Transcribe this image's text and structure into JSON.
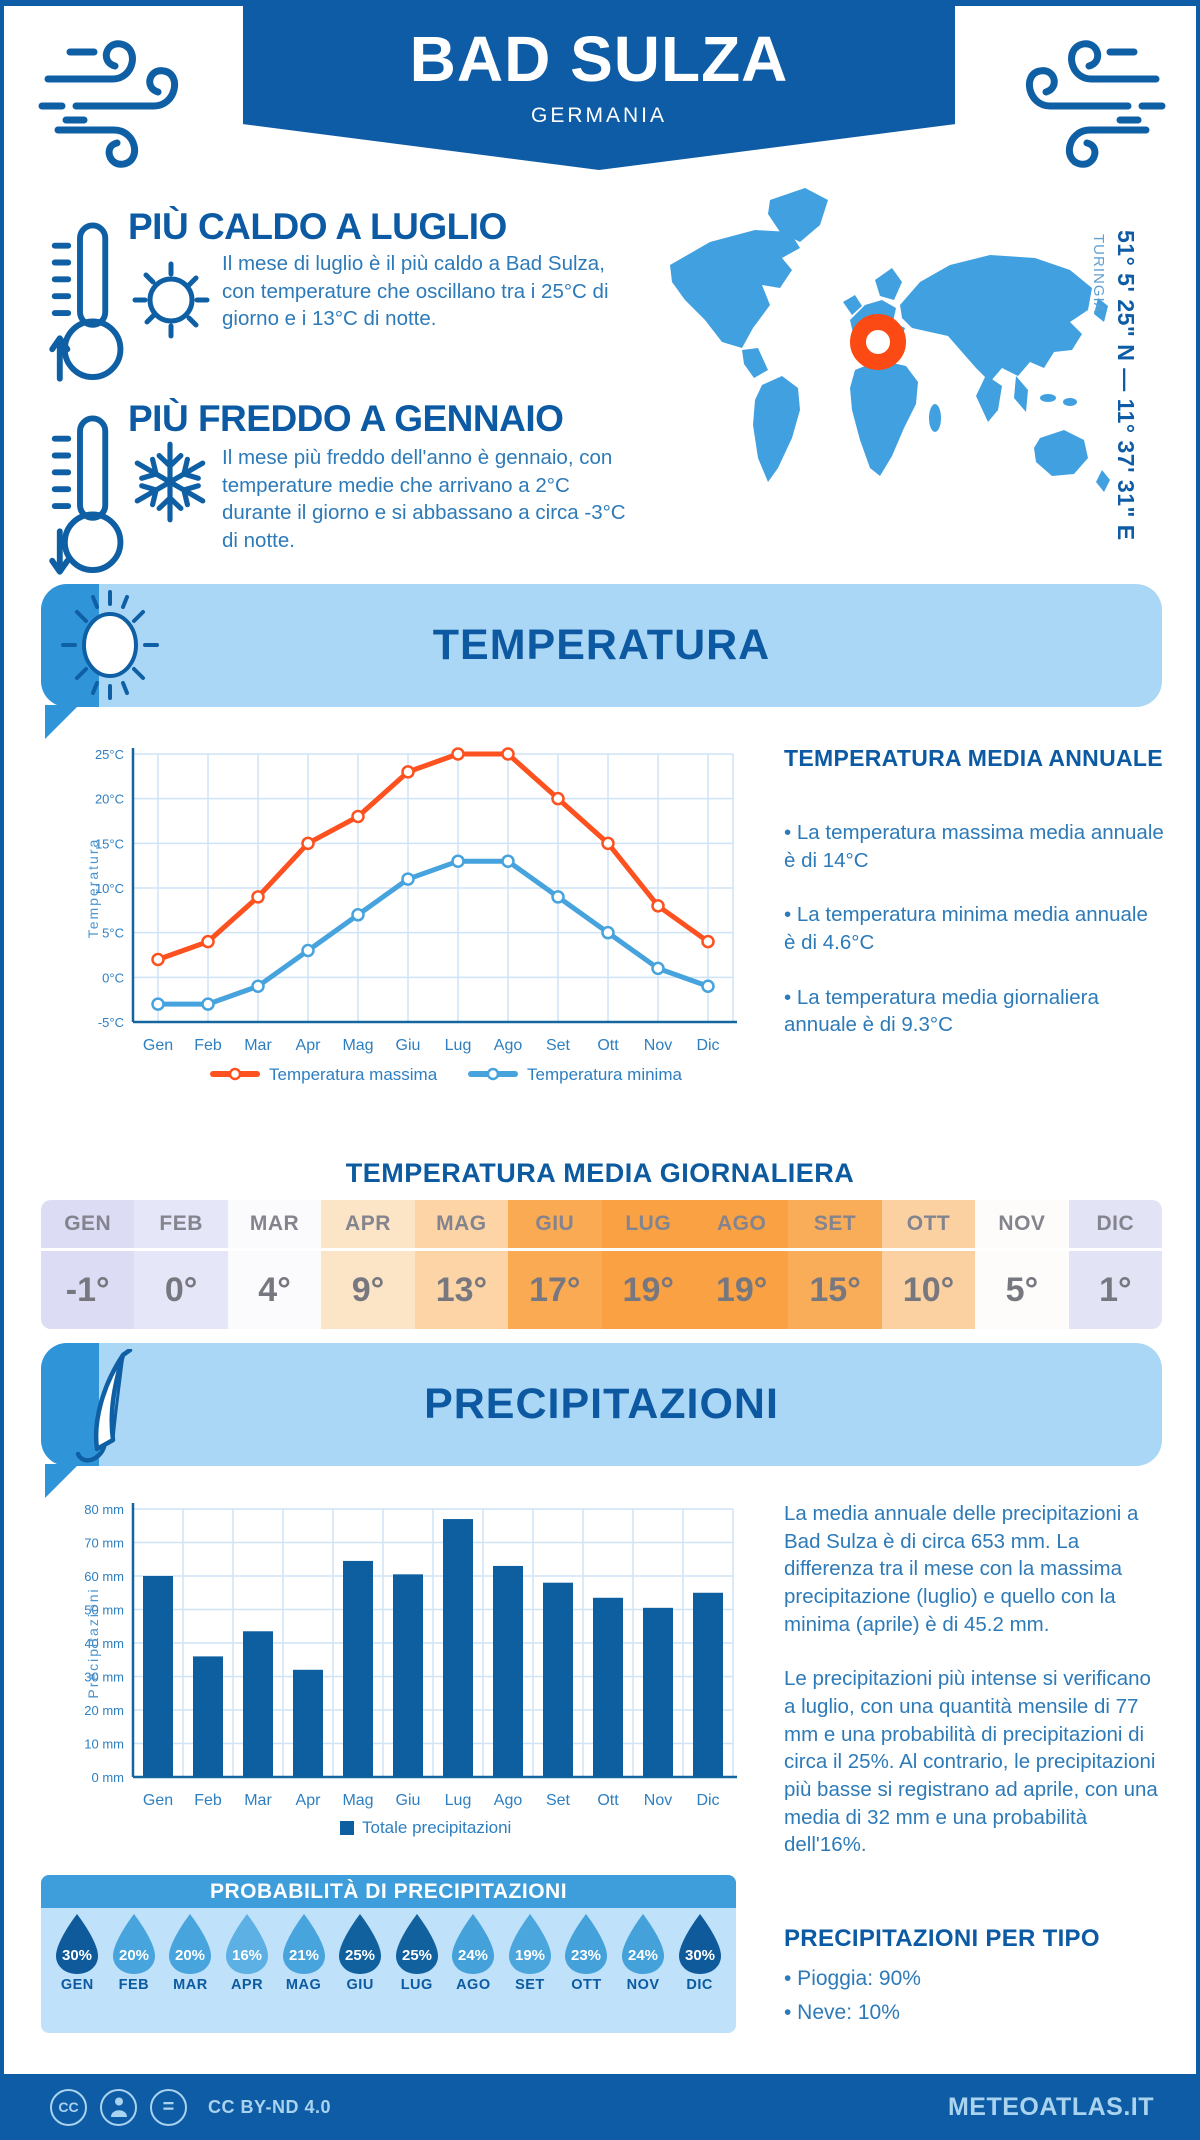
{
  "header": {
    "title": "BAD SULZA",
    "subtitle": "GERMANIA"
  },
  "location": {
    "coordinates": "51° 5' 25\" N — 11° 37' 31\" E",
    "region": "TURINGIA"
  },
  "hottest": {
    "title": "PIÙ CALDO A LUGLIO",
    "text": "Il mese di luglio è il più caldo a Bad Sulza, con temperature che oscillano tra i 25°C di giorno e i 13°C di notte."
  },
  "coldest": {
    "title": "PIÙ FREDDO A GENNAIO",
    "text": "Il mese più freddo dell'anno è gennaio, con temperature medie che arrivano a 2°C durante il giorno e si abbassano a circa -3°C di notte."
  },
  "temperature_section": {
    "banner": "TEMPERATURA",
    "annual": {
      "title": "TEMPERATURA MEDIA ANNUALE",
      "bullets": [
        "• La temperatura massima media annuale è di 14°C",
        "• La temperatura minima media annuale è di 4.6°C",
        "• La temperatura media giornaliera annuale è di 9.3°C"
      ]
    },
    "daily": {
      "title": "TEMPERATURA MEDIA GIORNALIERA",
      "months": [
        {
          "label": "GEN",
          "value": "-1°",
          "bg": "#dcdcf4"
        },
        {
          "label": "FEB",
          "value": "0°",
          "bg": "#e6e6f9"
        },
        {
          "label": "MAR",
          "value": "4°",
          "bg": "#fbfbfe"
        },
        {
          "label": "APR",
          "value": "9°",
          "bg": "#fce4c6"
        },
        {
          "label": "MAG",
          "value": "13°",
          "bg": "#fcd4a6"
        },
        {
          "label": "GIU",
          "value": "17°",
          "bg": "#faaa53"
        },
        {
          "label": "LUG",
          "value": "19°",
          "bg": "#f9a143"
        },
        {
          "label": "AGO",
          "value": "19°",
          "bg": "#f9a143"
        },
        {
          "label": "SET",
          "value": "15°",
          "bg": "#faad58"
        },
        {
          "label": "OTT",
          "value": "10°",
          "bg": "#fbd1a2"
        },
        {
          "label": "NOV",
          "value": "5°",
          "bg": "#fdfcfa"
        },
        {
          "label": "DIC",
          "value": "1°",
          "bg": "#e3e3f6"
        }
      ]
    }
  },
  "chart_data": [
    {
      "type": "line",
      "title": "",
      "x_categories": [
        "Gen",
        "Feb",
        "Mar",
        "Apr",
        "Mag",
        "Giu",
        "Lug",
        "Ago",
        "Set",
        "Ott",
        "Nov",
        "Dic"
      ],
      "ylabel": "Temperatura",
      "ylim": [
        -5,
        25
      ],
      "yticks": [
        {
          "v": 25,
          "label": "25°C"
        },
        {
          "v": 20,
          "label": "20°C"
        },
        {
          "v": 15,
          "label": "15°C"
        },
        {
          "v": 10,
          "label": "10°C"
        },
        {
          "v": 5,
          "label": "5°C"
        },
        {
          "v": 0,
          "label": "0°C"
        },
        {
          "v": -5,
          "label": "-5°C"
        }
      ],
      "series": [
        {
          "name": "Temperatura massima",
          "color": "#fd5120",
          "values": [
            2,
            4,
            9,
            15,
            18,
            23,
            25,
            25,
            20,
            15,
            8,
            4
          ]
        },
        {
          "name": "Temperatura minima",
          "color": "#47a3dd",
          "values": [
            -3,
            -3,
            -1,
            3,
            7,
            11,
            13,
            13,
            9,
            5,
            1,
            -1
          ]
        }
      ],
      "legend_position": "bottom",
      "grid": true
    },
    {
      "type": "bar",
      "title": "",
      "x_categories": [
        "Gen",
        "Feb",
        "Mar",
        "Apr",
        "Mag",
        "Giu",
        "Lug",
        "Ago",
        "Set",
        "Ott",
        "Nov",
        "Dic"
      ],
      "ylabel": "Precipitazioni",
      "ylim": [
        0,
        80
      ],
      "yticks": [
        {
          "v": 0,
          "label": "0 mm"
        },
        {
          "v": 10,
          "label": "10 mm"
        },
        {
          "v": 20,
          "label": "20 mm"
        },
        {
          "v": 30,
          "label": "30 mm"
        },
        {
          "v": 40,
          "label": "40 mm"
        },
        {
          "v": 50,
          "label": "50 mm"
        },
        {
          "v": 60,
          "label": "60 mm"
        },
        {
          "v": 70,
          "label": "70 mm"
        },
        {
          "v": 80,
          "label": "80 mm"
        }
      ],
      "series": [
        {
          "name": "Totale precipitazioni",
          "color": "#0d5f9f",
          "values": [
            60,
            36,
            43.5,
            32,
            64.5,
            60.5,
            77,
            63,
            58,
            53.5,
            50.5,
            55
          ]
        }
      ],
      "legend_position": "bottom",
      "grid": true
    }
  ],
  "precipitation_section": {
    "banner": "PRECIPITAZIONI",
    "paragraph1": "La media annuale delle precipitazioni a Bad Sulza è di circa 653 mm. La differenza tra il mese con la massima precipitazione (luglio) e quello con la minima (aprile) è di 45.2 mm.",
    "paragraph2": "Le precipitazioni più intense si verificano a luglio, con una quantità mensile di 77 mm e una probabilità di precipitazioni di circa il 25%. Al contrario, le precipitazioni più basse si registrano ad aprile, con una media di 32 mm e una probabilità dell'16%.",
    "probability": {
      "title": "PROBABILITÀ DI PRECIPITAZIONI",
      "months": [
        {
          "label": "GEN",
          "value": "30%",
          "color": "#0f5a9a"
        },
        {
          "label": "FEB",
          "value": "20%",
          "color": "#48a4dc"
        },
        {
          "label": "MAR",
          "value": "20%",
          "color": "#48a4dc"
        },
        {
          "label": "APR",
          "value": "16%",
          "color": "#5cb0e3"
        },
        {
          "label": "MAG",
          "value": "21%",
          "color": "#48a4dc"
        },
        {
          "label": "GIU",
          "value": "25%",
          "color": "#11619f"
        },
        {
          "label": "LUG",
          "value": "25%",
          "color": "#11619f"
        },
        {
          "label": "AGO",
          "value": "24%",
          "color": "#44a1da"
        },
        {
          "label": "SET",
          "value": "19%",
          "color": "#4aa6dd"
        },
        {
          "label": "OTT",
          "value": "23%",
          "color": "#44a1da"
        },
        {
          "label": "NOV",
          "value": "24%",
          "color": "#44a1da"
        },
        {
          "label": "DIC",
          "value": "30%",
          "color": "#0f5a9a"
        }
      ]
    },
    "types": {
      "title": "PRECIPITAZIONI PER TIPO",
      "bullets": [
        "• Pioggia: 90%",
        "• Neve: 10%"
      ]
    }
  },
  "footer": {
    "license": "CC BY-ND 4.0",
    "site": "METEOATLAS.IT"
  },
  "colors": {
    "primary": "#0e5ca6",
    "band": "#abd7f6",
    "accent": "#3095d8",
    "map": "#41a0e0",
    "marker": "#fb4a13"
  }
}
